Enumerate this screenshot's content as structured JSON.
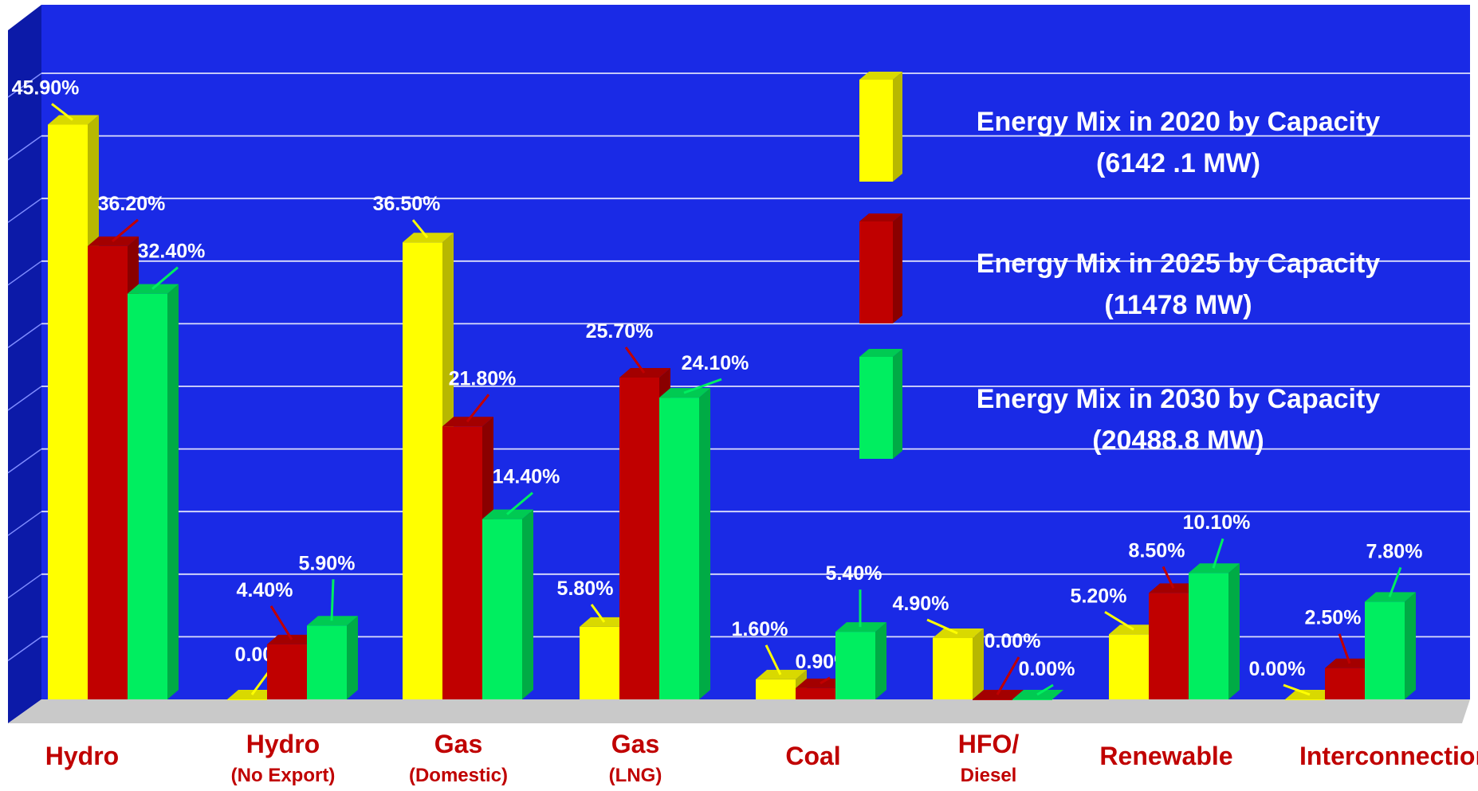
{
  "colors": {
    "wall": "#1a2ae6",
    "left_wall": "#0c1aa8",
    "floor": "#c9c9c9",
    "gridline": "#ffffff",
    "category_text": "#c00000"
  },
  "chart_data": {
    "type": "bar",
    "title": "",
    "xlabel": "",
    "ylabel": "",
    "ylim": [
      0,
      50
    ],
    "grid": true,
    "legend_position": "right",
    "categories": [
      {
        "main": "Hydro",
        "sub": ""
      },
      {
        "main": "Hydro",
        "sub": "(No Export)"
      },
      {
        "main": "Gas",
        "sub": "(Domestic)"
      },
      {
        "main": "Gas",
        "sub": "(LNG)"
      },
      {
        "main": "Coal",
        "sub": ""
      },
      {
        "main": "HFO/",
        "sub": "Diesel"
      },
      {
        "main": "Renewable",
        "sub": ""
      },
      {
        "main": "Interconnection",
        "sub": ""
      }
    ],
    "series": [
      {
        "name": "Energy Mix in 2020 by Capacity",
        "name_line2": "(6142 .1 MW)",
        "color": "#ffff00",
        "values": [
          45.9,
          0.0,
          36.5,
          5.8,
          1.6,
          4.9,
          5.2,
          0.0
        ],
        "labels": [
          "45.90%",
          "0.00%",
          "36.50%",
          "5.80%",
          "1.60%",
          "4.90%",
          "5.20%",
          "0.00%"
        ]
      },
      {
        "name": "Energy Mix in 2025 by Capacity",
        "name_line2": "(11478 MW)",
        "color": "#c00000",
        "values": [
          36.2,
          4.4,
          21.8,
          25.7,
          0.9,
          0.0,
          8.5,
          2.5
        ],
        "labels": [
          "36.20%",
          "4.40%",
          "21.80%",
          "25.70%",
          "0.90%",
          "0.00%",
          "8.50%",
          "2.50%"
        ]
      },
      {
        "name": "Energy Mix in 2030 by Capacity",
        "name_line2": "(20488.8 MW)",
        "color": "#00ee60",
        "values": [
          32.4,
          5.9,
          14.4,
          24.1,
          5.4,
          0.0,
          10.1,
          7.8
        ],
        "labels": [
          "32.40%",
          "5.90%",
          "14.40%",
          "24.10%",
          "5.40%",
          "0.00%",
          "10.10%",
          "7.80%"
        ]
      }
    ]
  }
}
